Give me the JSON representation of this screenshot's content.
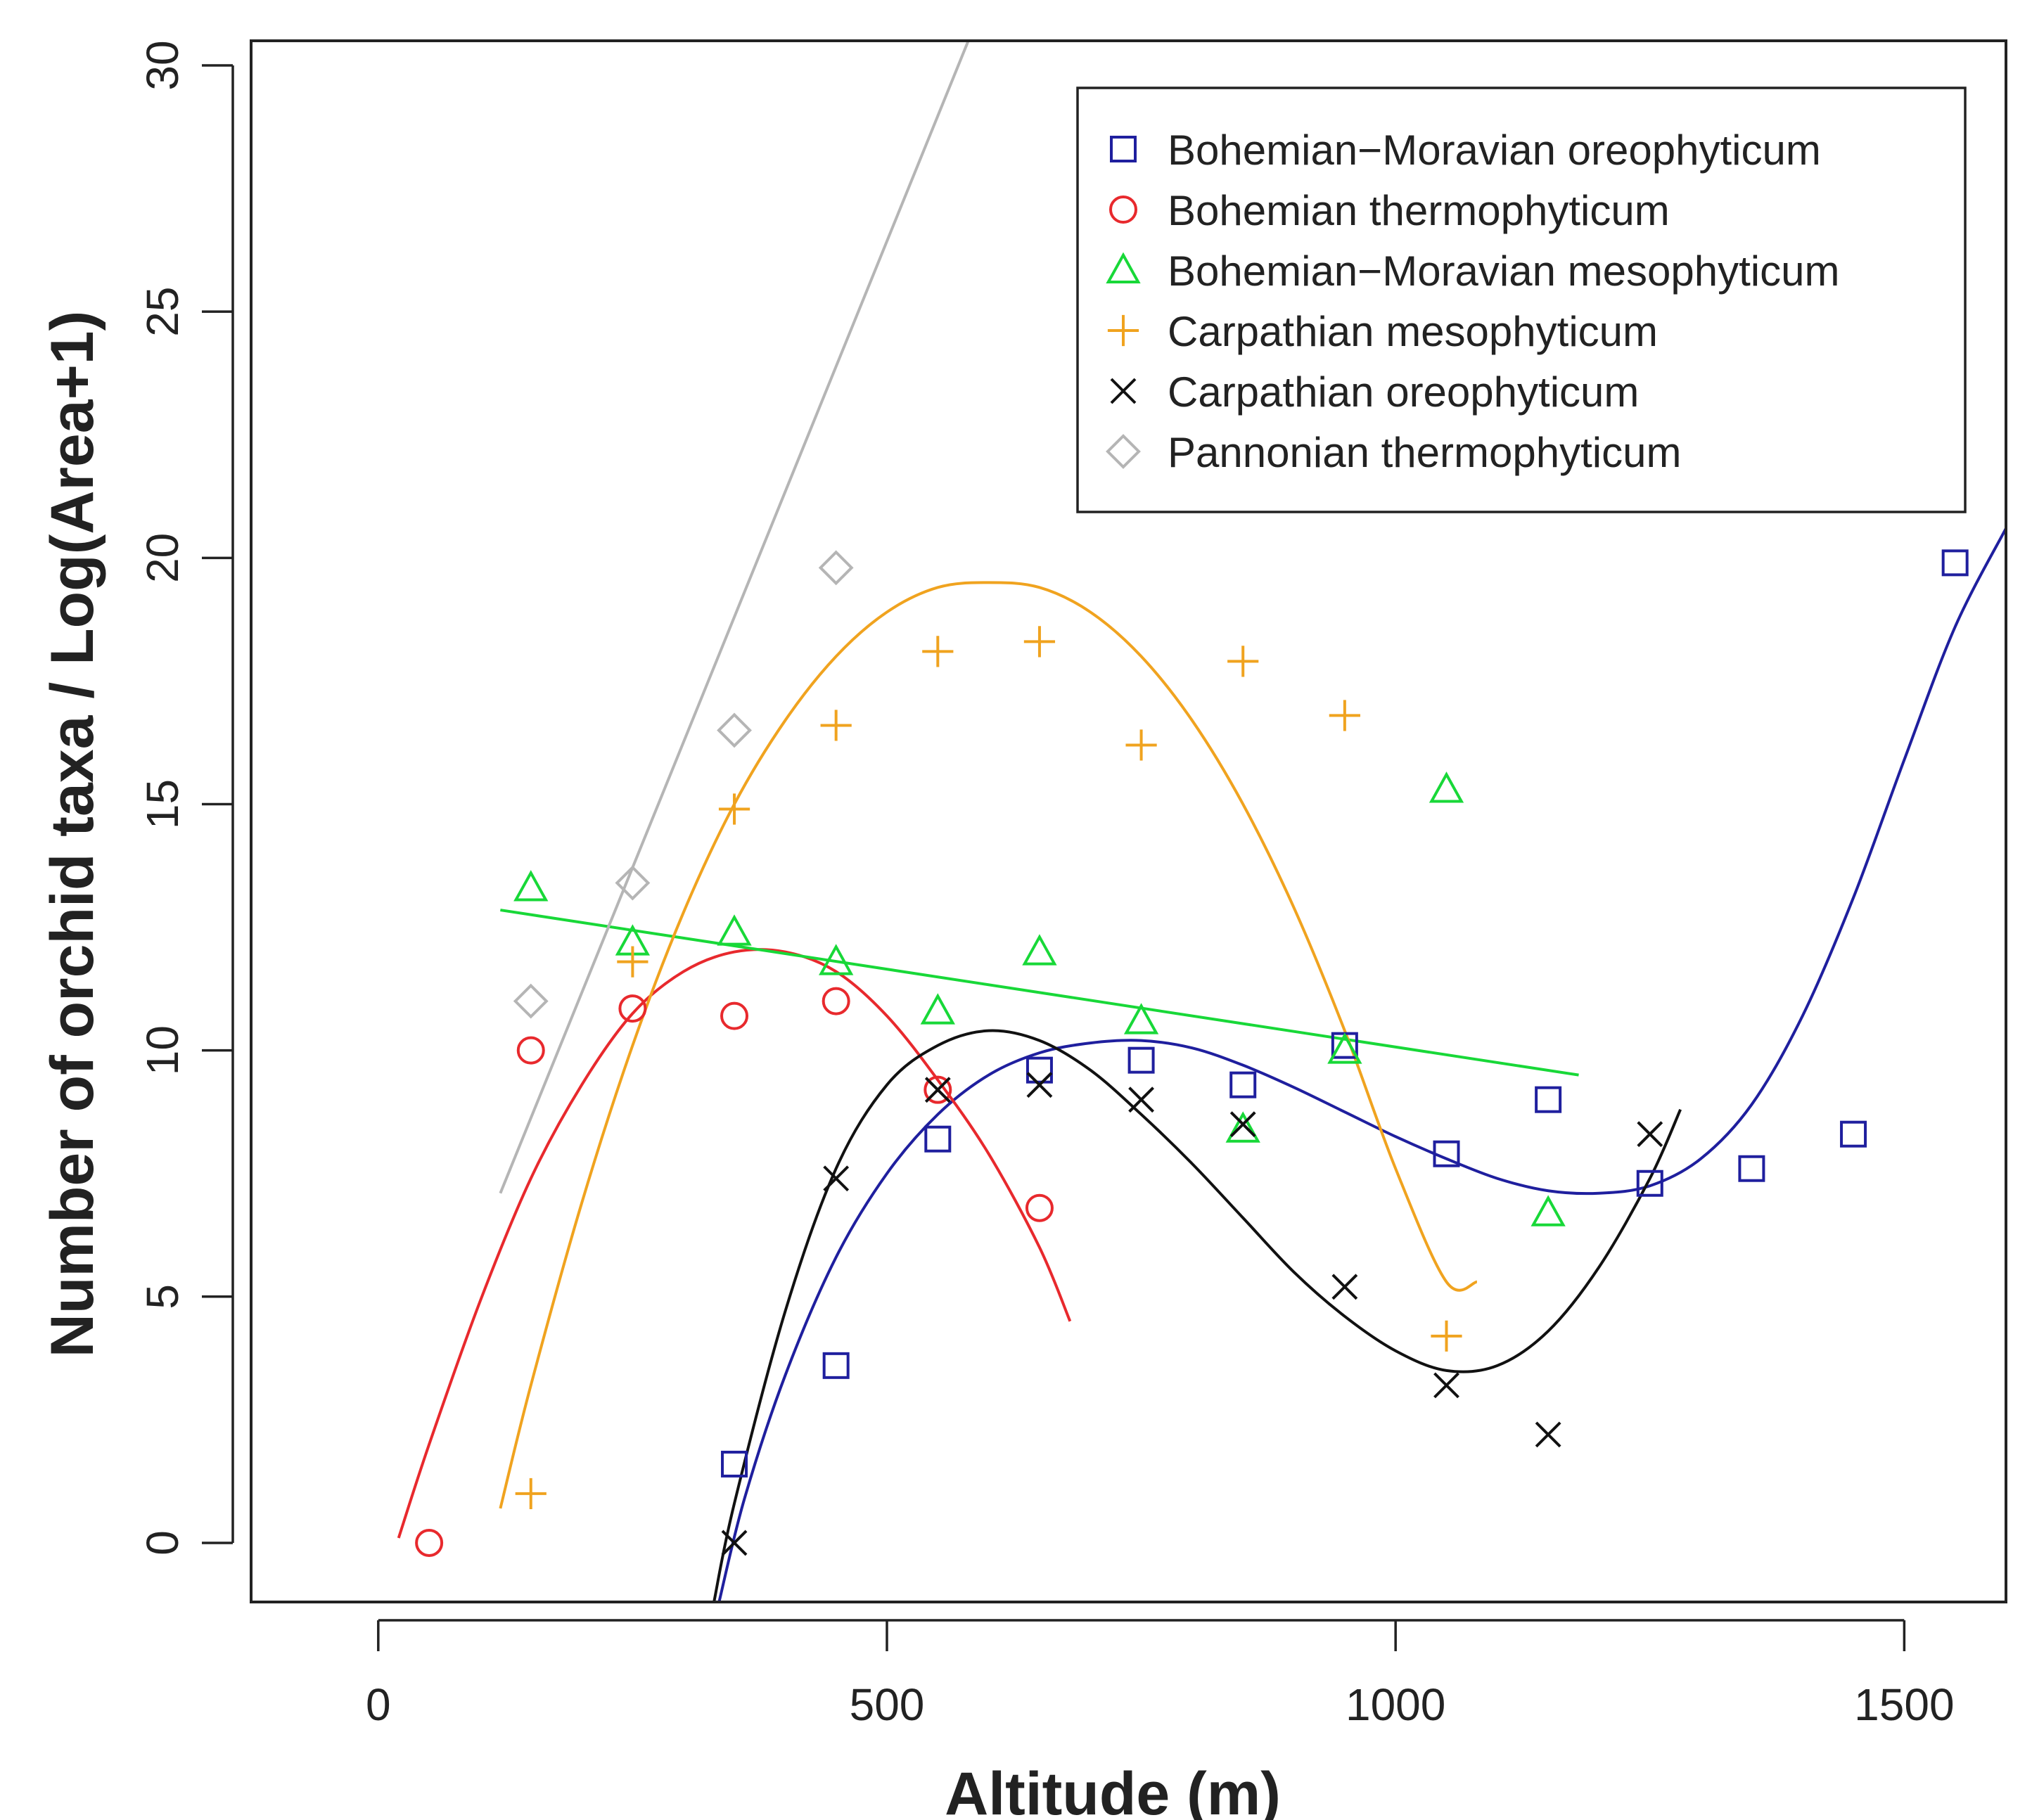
{
  "chart_data": {
    "type": "scatter",
    "title": "",
    "xlabel": "Altitude (m)",
    "ylabel": "Number of orchid taxa / Log(Area+1)",
    "xlim": [
      -125,
      1600
    ],
    "ylim": [
      -1.2,
      30.5
    ],
    "x_ticks": [
      0,
      500,
      1000,
      1500
    ],
    "x_tick_labels": [
      "0",
      "500",
      "1000",
      "1500"
    ],
    "y_ticks": [
      0,
      5,
      10,
      15,
      20,
      25,
      30
    ],
    "y_tick_labels": [
      "0",
      "5",
      "10",
      "15",
      "20",
      "25",
      "30"
    ],
    "grid": false,
    "legend_position": "top-right",
    "series": [
      {
        "name": "Bohemian−Moravian oreophyticum",
        "marker": "square",
        "color": "#1f1f9e",
        "points": [
          [
            350,
            1.6
          ],
          [
            450,
            3.6
          ],
          [
            550,
            8.2
          ],
          [
            650,
            9.6
          ],
          [
            750,
            9.8
          ],
          [
            850,
            9.3
          ],
          [
            950,
            10.1
          ],
          [
            1050,
            7.9
          ],
          [
            1150,
            9.0
          ],
          [
            1250,
            7.3
          ],
          [
            1350,
            7.6
          ],
          [
            1450,
            8.3
          ],
          [
            1550,
            19.9
          ]
        ],
        "fit": [
          [
            335,
            -1.2
          ],
          [
            360,
            0.9
          ],
          [
            400,
            3.4
          ],
          [
            450,
            5.8
          ],
          [
            500,
            7.5
          ],
          [
            550,
            8.7
          ],
          [
            600,
            9.5
          ],
          [
            650,
            9.95
          ],
          [
            700,
            10.15
          ],
          [
            750,
            10.2
          ],
          [
            800,
            10.05
          ],
          [
            850,
            9.7
          ],
          [
            900,
            9.25
          ],
          [
            950,
            8.75
          ],
          [
            1000,
            8.25
          ],
          [
            1050,
            7.8
          ],
          [
            1100,
            7.4
          ],
          [
            1150,
            7.15
          ],
          [
            1200,
            7.1
          ],
          [
            1250,
            7.25
          ],
          [
            1300,
            7.8
          ],
          [
            1350,
            8.9
          ],
          [
            1400,
            10.7
          ],
          [
            1450,
            13.1
          ],
          [
            1500,
            15.9
          ],
          [
            1550,
            18.6
          ],
          [
            1600,
            20.6
          ]
        ]
      },
      {
        "name": "Bohemian thermophyticum",
        "marker": "circle",
        "color": "#e8292d",
        "points": [
          [
            50,
            0.0
          ],
          [
            150,
            10.0
          ],
          [
            250,
            10.85
          ],
          [
            350,
            10.7
          ],
          [
            450,
            11.0
          ],
          [
            550,
            9.2
          ],
          [
            650,
            6.8
          ]
        ],
        "fit": [
          [
            20,
            0.1
          ],
          [
            50,
            2.0
          ],
          [
            100,
            4.9
          ],
          [
            150,
            7.4
          ],
          [
            200,
            9.3
          ],
          [
            250,
            10.75
          ],
          [
            300,
            11.6
          ],
          [
            350,
            12.0
          ],
          [
            400,
            12.0
          ],
          [
            450,
            11.6
          ],
          [
            500,
            10.7
          ],
          [
            550,
            9.4
          ],
          [
            600,
            7.9
          ],
          [
            650,
            6.0
          ],
          [
            680,
            4.5
          ]
        ]
      },
      {
        "name": "Bohemian−Moravian mesophyticum",
        "marker": "triangle",
        "color": "#18d838",
        "points": [
          [
            150,
            13.3
          ],
          [
            250,
            12.2
          ],
          [
            350,
            12.4
          ],
          [
            450,
            11.8
          ],
          [
            550,
            10.8
          ],
          [
            650,
            12.0
          ],
          [
            750,
            10.6
          ],
          [
            850,
            8.4
          ],
          [
            950,
            10.0
          ],
          [
            1050,
            15.3
          ],
          [
            1150,
            6.7
          ]
        ],
        "fit": [
          [
            120,
            12.85
          ],
          [
            1180,
            9.5
          ]
        ]
      },
      {
        "name": "Carpathian mesophyticum",
        "marker": "plus",
        "color": "#f0a31f",
        "points": [
          [
            150,
            1.0
          ],
          [
            250,
            11.8
          ],
          [
            350,
            14.9
          ],
          [
            450,
            16.6
          ],
          [
            550,
            18.1
          ],
          [
            650,
            18.3
          ],
          [
            750,
            16.2
          ],
          [
            850,
            17.9
          ],
          [
            950,
            16.8
          ],
          [
            1050,
            4.2
          ]
        ],
        "fit": [
          [
            120,
            0.7
          ],
          [
            150,
            3.2
          ],
          [
            200,
            6.9
          ],
          [
            250,
            10.1
          ],
          [
            300,
            12.8
          ],
          [
            350,
            15.0
          ],
          [
            400,
            16.7
          ],
          [
            450,
            18.0
          ],
          [
            500,
            18.9
          ],
          [
            550,
            19.4
          ],
          [
            600,
            19.5
          ],
          [
            650,
            19.4
          ],
          [
            700,
            18.9
          ],
          [
            750,
            18.0
          ],
          [
            800,
            16.7
          ],
          [
            850,
            15.0
          ],
          [
            900,
            12.9
          ],
          [
            950,
            10.4
          ],
          [
            1000,
            7.6
          ],
          [
            1050,
            5.3
          ],
          [
            1080,
            5.3
          ]
        ]
      },
      {
        "name": "Carpathian oreophyticum",
        "marker": "cross",
        "color": "#111111",
        "points": [
          [
            350,
            0.0
          ],
          [
            450,
            7.4
          ],
          [
            550,
            9.2
          ],
          [
            650,
            9.3
          ],
          [
            750,
            9.0
          ],
          [
            850,
            8.5
          ],
          [
            950,
            5.2
          ],
          [
            1050,
            3.2
          ],
          [
            1150,
            2.2
          ],
          [
            1250,
            8.3
          ]
        ],
        "fit": [
          [
            330,
            -1.2
          ],
          [
            350,
            0.8
          ],
          [
            400,
            4.7
          ],
          [
            450,
            7.6
          ],
          [
            500,
            9.3
          ],
          [
            550,
            10.1
          ],
          [
            600,
            10.4
          ],
          [
            650,
            10.2
          ],
          [
            700,
            9.6
          ],
          [
            750,
            8.7
          ],
          [
            800,
            7.7
          ],
          [
            850,
            6.6
          ],
          [
            900,
            5.5
          ],
          [
            950,
            4.6
          ],
          [
            1000,
            3.9
          ],
          [
            1050,
            3.5
          ],
          [
            1100,
            3.6
          ],
          [
            1150,
            4.3
          ],
          [
            1200,
            5.6
          ],
          [
            1250,
            7.4
          ],
          [
            1280,
            8.8
          ]
        ]
      },
      {
        "name": "Pannonian thermophyticum",
        "marker": "diamond",
        "color": "#b5b5b5",
        "points": [
          [
            150,
            11.0
          ],
          [
            250,
            13.4
          ],
          [
            350,
            16.5
          ],
          [
            450,
            19.8
          ]
        ],
        "fit": [
          [
            120,
            7.1
          ],
          [
            580,
            30.5
          ]
        ]
      }
    ]
  }
}
